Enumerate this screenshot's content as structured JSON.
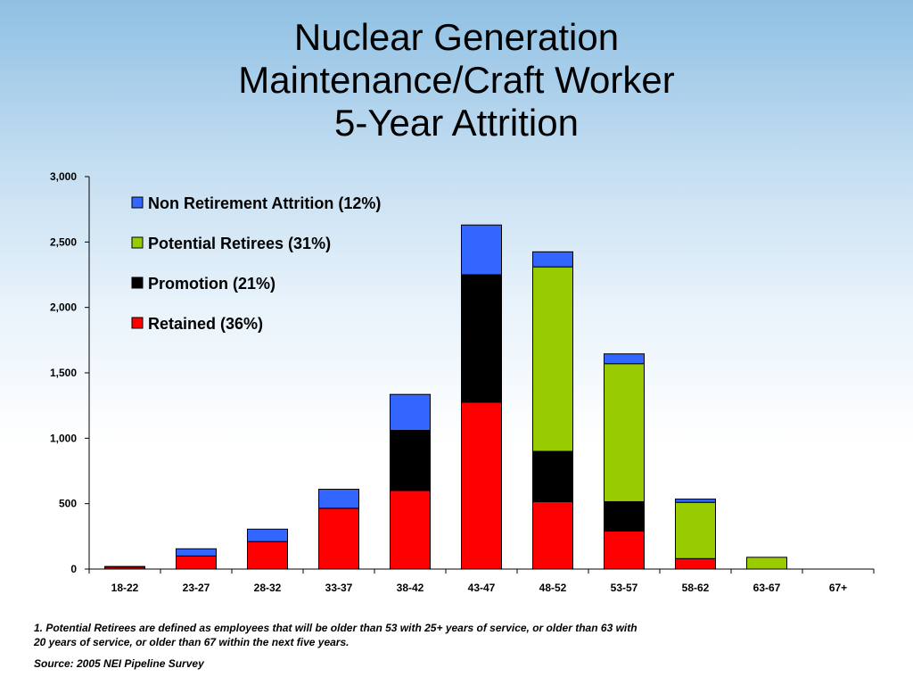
{
  "title": {
    "line1": "Nuclear Generation",
    "line2": "Maintenance/Craft Worker",
    "line3": "5-Year Attrition"
  },
  "chart_data": {
    "type": "bar",
    "stacked": true,
    "categories": [
      "18-22",
      "23-27",
      "28-32",
      "33-37",
      "38-42",
      "43-47",
      "48-52",
      "53-57",
      "58-62",
      "63-67",
      "67+"
    ],
    "series": [
      {
        "name": "Retained (36%)",
        "color": "#ff0000",
        "values": [
          15,
          100,
          210,
          465,
          600,
          1275,
          515,
          290,
          80,
          0,
          0
        ]
      },
      {
        "name": "Promotion (21%)",
        "color": "#000000",
        "values": [
          5,
          0,
          0,
          0,
          460,
          975,
          385,
          225,
          0,
          0,
          0
        ]
      },
      {
        "name": "Potential Retirees (31%)",
        "color": "#99cc00",
        "values": [
          0,
          0,
          0,
          0,
          0,
          0,
          1410,
          1055,
          430,
          90,
          0
        ]
      },
      {
        "name": "Non Retirement Attrition (12%)",
        "color": "#3366ff",
        "values": [
          0,
          55,
          95,
          145,
          275,
          380,
          115,
          75,
          25,
          0,
          0
        ]
      }
    ],
    "legend_order": [
      "Non Retirement Attrition (12%)",
      "Potential Retirees (31%)",
      "Promotion (21%)",
      "Retained (36%)"
    ],
    "legend_position": "top-left",
    "yticks": [
      "0",
      "500",
      "1,000",
      "1,500",
      "2,000",
      "2,500",
      "3,000"
    ],
    "ylim": [
      0,
      3000
    ],
    "grid": false
  },
  "footnote": {
    "line1": "1. Potential  Retirees are defined as employees that will be older than 53 with 25+ years of service, or older than 63 with",
    "line2": "20 years of service, or older than 67 within the next five years.",
    "source": "Source: 2005 NEI Pipeline Survey"
  }
}
